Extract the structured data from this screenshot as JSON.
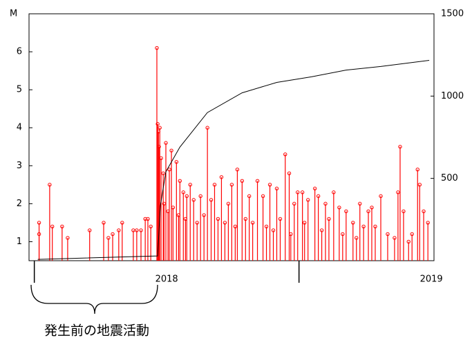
{
  "chart_data": {
    "type": "stem",
    "y_label": "M",
    "annotation": "発生前の地震活動",
    "xlim": [
      2017.98,
      2019.51
    ],
    "xticks": [
      2018,
      2019
    ],
    "ylim": [
      0.5,
      7
    ],
    "yticks": [
      1,
      2,
      3,
      4,
      5,
      6
    ],
    "y2lim": [
      0,
      1500
    ],
    "y2ticks": [
      500,
      1000,
      1500
    ],
    "series": [
      {
        "type": "stem",
        "color": "#ff0000",
        "x": [
          2018.018,
          2018.018,
          2018.058,
          2018.068,
          2018.105,
          2018.126,
          2018.209,
          2018.262,
          2018.28,
          2018.296,
          2018.319,
          2018.332,
          2018.374,
          2018.387,
          2018.403,
          2018.419,
          2018.429,
          2018.44,
          2018.463,
          2018.466,
          2018.469,
          2018.471,
          2018.474,
          2018.479,
          2018.487,
          2018.49,
          2018.497,
          2018.505,
          2018.51,
          2018.518,
          2018.524,
          2018.537,
          2018.545,
          2018.55,
          2018.563,
          2018.571,
          2018.576,
          2018.589,
          2018.602,
          2018.615,
          2018.628,
          2018.641,
          2018.654,
          2018.668,
          2018.681,
          2018.694,
          2018.707,
          2018.72,
          2018.733,
          2018.746,
          2018.759,
          2018.767,
          2018.785,
          2018.798,
          2018.812,
          2018.825,
          2018.843,
          2018.864,
          2018.877,
          2018.89,
          2018.903,
          2018.916,
          2018.929,
          2018.948,
          2018.963,
          2018.969,
          2018.982,
          2018.995,
          2019.013,
          2019.021,
          2019.034,
          2019.06,
          2019.073,
          2019.086,
          2019.1,
          2019.113,
          2019.131,
          2019.152,
          2019.165,
          2019.178,
          2019.204,
          2019.217,
          2019.23,
          2019.244,
          2019.262,
          2019.275,
          2019.288,
          2019.309,
          2019.335,
          2019.361,
          2019.374,
          2019.382,
          2019.395,
          2019.414,
          2019.427,
          2019.448,
          2019.456,
          2019.471,
          2019.487
        ],
        "values": [
          1.5,
          1.2,
          2.5,
          1.4,
          1.4,
          1.1,
          1.3,
          1.5,
          1.1,
          1.2,
          1.3,
          1.5,
          1.3,
          1.3,
          1.3,
          1.6,
          1.6,
          1.4,
          6.1,
          4.1,
          3.9,
          3.5,
          4.0,
          3.2,
          2.8,
          2.0,
          3.6,
          1.8,
          2.9,
          3.4,
          1.9,
          3.1,
          1.7,
          2.6,
          2.3,
          1.6,
          2.2,
          2.5,
          2.1,
          1.5,
          2.2,
          1.7,
          4.0,
          2.1,
          2.5,
          1.6,
          2.7,
          1.5,
          2.0,
          2.5,
          1.4,
          2.9,
          2.6,
          1.6,
          2.2,
          1.5,
          2.6,
          2.2,
          1.4,
          2.5,
          1.3,
          2.4,
          1.6,
          3.3,
          2.8,
          1.2,
          2.0,
          2.3,
          2.3,
          1.5,
          2.1,
          2.4,
          2.2,
          1.3,
          2.0,
          1.6,
          2.3,
          1.9,
          1.2,
          1.8,
          1.5,
          1.1,
          2.0,
          1.4,
          1.8,
          1.9,
          1.4,
          2.2,
          1.2,
          1.1,
          2.3,
          3.5,
          1.8,
          1.0,
          1.2,
          2.9,
          2.5,
          1.8,
          1.5
        ]
      },
      {
        "type": "line",
        "color": "#000000",
        "axis": "y2",
        "x": [
          2018.013,
          2018.466,
          2018.476,
          2018.497,
          2018.55,
          2018.654,
          2018.785,
          2018.916,
          2019.047,
          2019.178,
          2019.309,
          2019.492
        ],
        "values": [
          8,
          29,
          333,
          540,
          690,
          900,
          1020,
          1083,
          1117,
          1158,
          1180,
          1217
        ]
      }
    ]
  }
}
